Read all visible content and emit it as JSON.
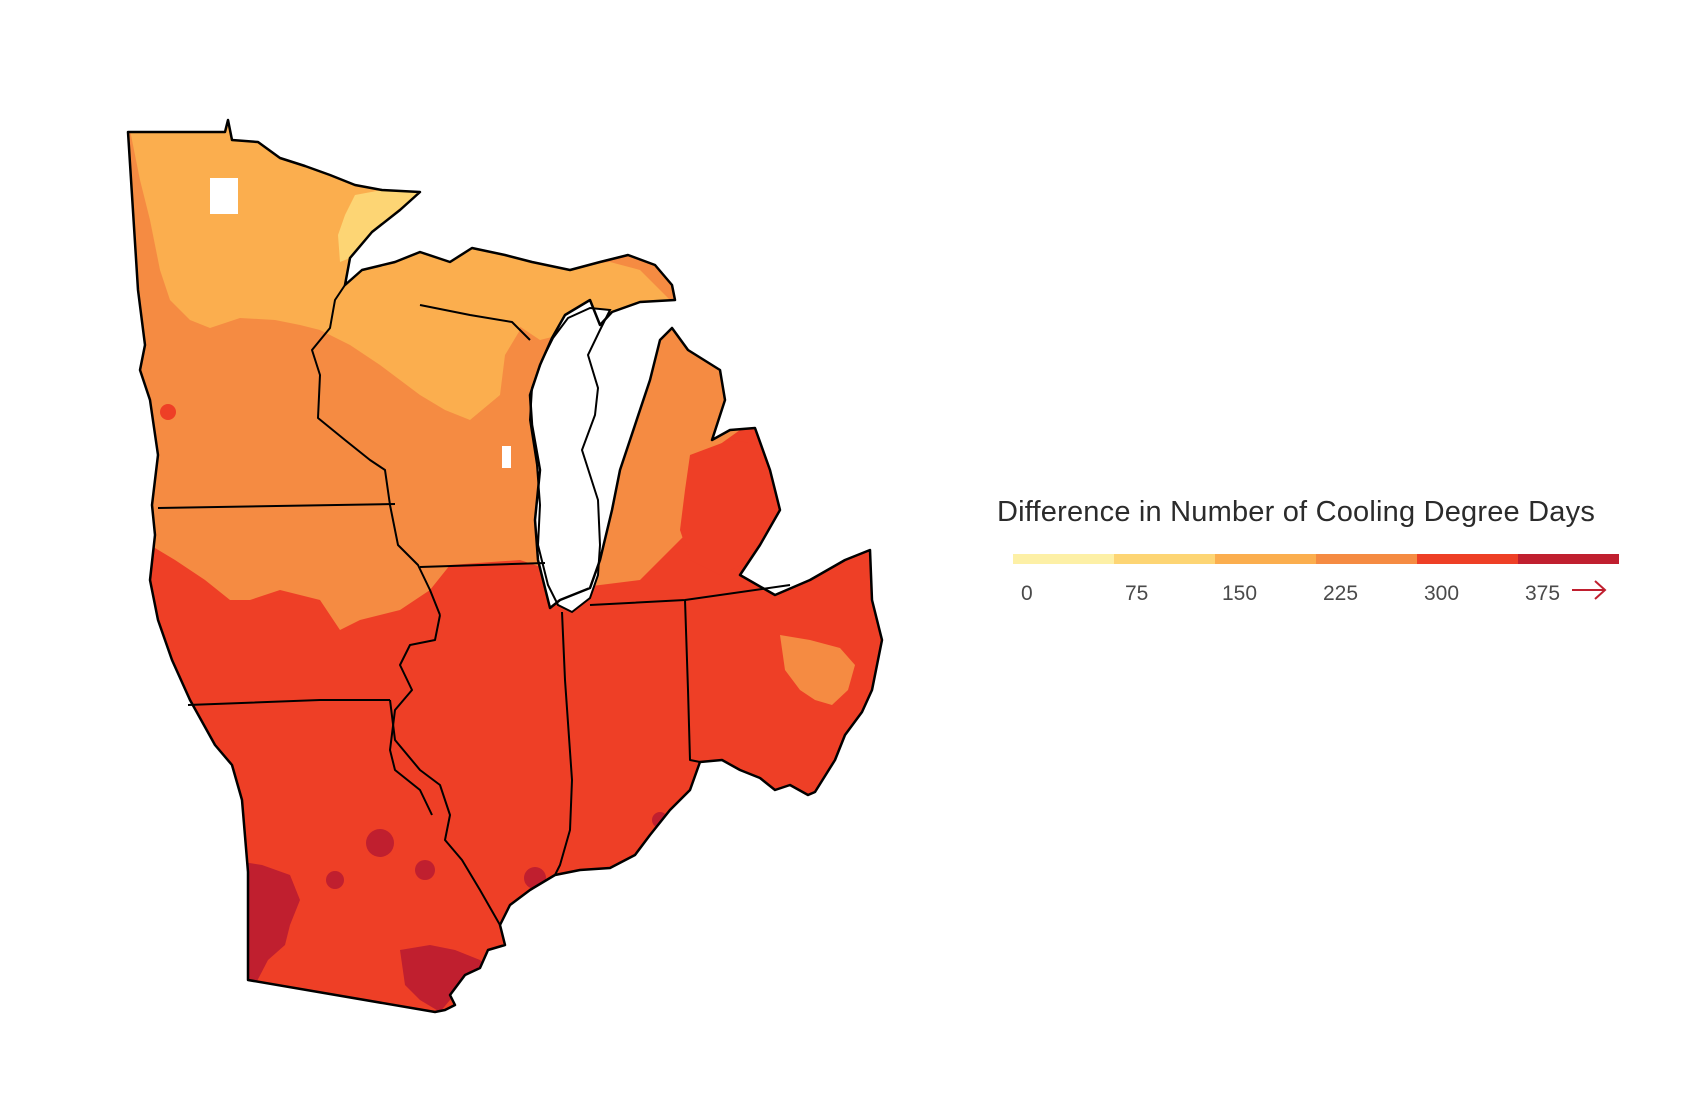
{
  "legend": {
    "title": "Difference in Number of Cooling Degree Days",
    "ticks": [
      "0",
      "75",
      "150",
      "225",
      "300",
      "375"
    ],
    "colors": [
      "#fdf0a6",
      "#fdd574",
      "#fbae4e",
      "#f58b42",
      "#ee3f26",
      "#c01f2f"
    ],
    "arrow_icon": "right-arrow-icon"
  },
  "map": {
    "region": "Midwest United States",
    "state_outline_color": "#000000",
    "lake_color": "#ffffff"
  }
}
